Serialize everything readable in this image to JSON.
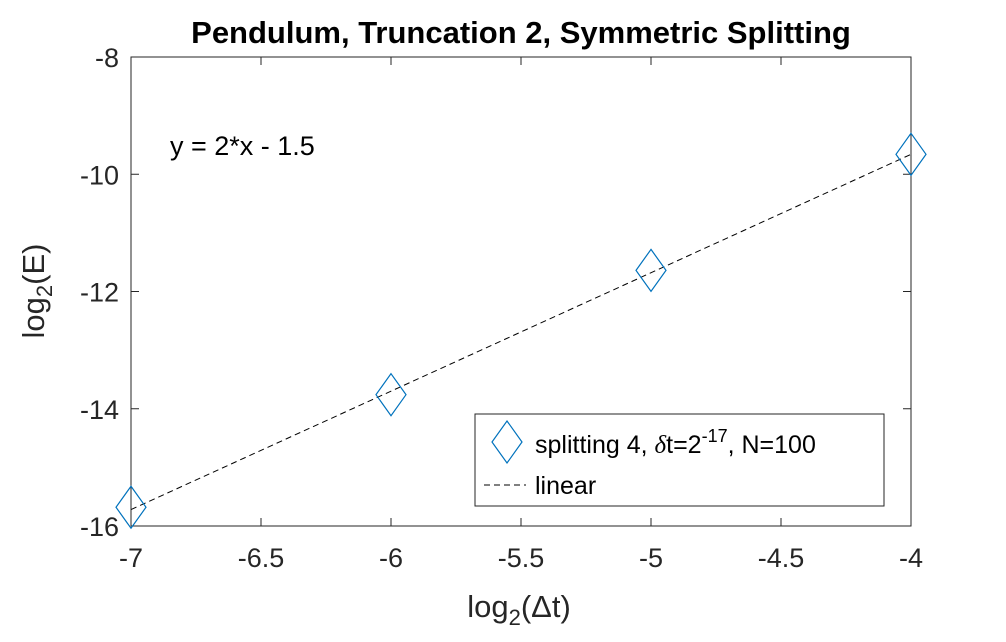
{
  "chart_data": {
    "type": "scatter",
    "title": "Pendulum, Truncation 2, Symmetric Splitting",
    "xlabel": {
      "base": "log",
      "sub": "2",
      "arg": "(Δt)"
    },
    "ylabel": {
      "base": "log",
      "sub": "2",
      "arg": "(E)"
    },
    "xlim": [
      -7,
      -4
    ],
    "ylim": [
      -16,
      -8
    ],
    "xticks": [
      -7,
      -6.5,
      -6,
      -5.5,
      -5,
      -4.5,
      -4
    ],
    "xtick_labels": [
      "-7",
      "-6.5",
      "-6",
      "-5.5",
      "-5",
      "-4.5",
      "-4"
    ],
    "yticks": [
      -16,
      -14,
      -12,
      -10,
      -8
    ],
    "ytick_labels": [
      "-16",
      "-14",
      "-12",
      "-10",
      "-8"
    ],
    "grid": false,
    "legend_placement": "bottom-right",
    "annotation": "y = 2*x - 1.5",
    "series": [
      {
        "name": {
          "prefix": "splitting 4, ",
          "delta": "δ",
          "mid": "t=2",
          "sup": "-17",
          "suffix": ", N=100"
        },
        "marker": "diamond",
        "color": "#0072BD",
        "x": [
          -7,
          -6,
          -5,
          -4
        ],
        "y": [
          -15.68,
          -13.76,
          -11.64,
          -9.66
        ]
      },
      {
        "name": "linear",
        "style": "dashed",
        "color": "#000000",
        "x": [
          -7,
          -4
        ],
        "y": [
          -15.72,
          -9.66
        ]
      }
    ]
  }
}
